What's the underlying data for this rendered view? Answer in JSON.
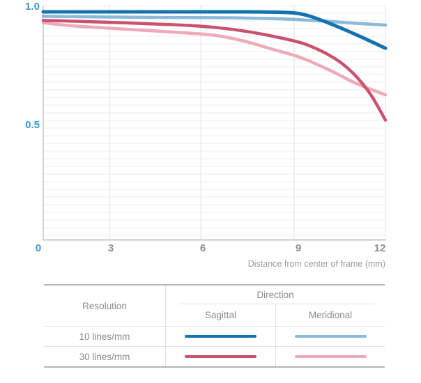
{
  "chart": {
    "y_tick_labels": [
      "1.0",
      "0.5"
    ],
    "x_tick_labels": [
      "0",
      "3",
      "6",
      "9",
      "12"
    ],
    "axis_title": "Distance from center of frame (mm)"
  },
  "chart_data": {
    "type": "line",
    "title": "",
    "xlabel": "Distance from center of frame (mm)",
    "ylabel": "",
    "xlim": [
      0,
      12
    ],
    "ylim": [
      0,
      1.0
    ],
    "xticks": [
      0,
      3,
      6,
      9,
      12
    ],
    "yticks": [
      1.0,
      0.5
    ],
    "grid": "fine horizontal lines plus vertical lines at x ticks",
    "legend_position": "table below chart",
    "series": [
      {
        "name": "10 lines/mm Sagittal",
        "color": "#1472b0",
        "stroke_width": 5,
        "x": [
          0,
          1,
          2,
          3,
          4,
          5,
          6,
          7,
          8,
          8.8,
          9.3,
          10,
          11,
          12
        ],
        "y": [
          0.982,
          0.982,
          0.982,
          0.982,
          0.982,
          0.982,
          0.982,
          0.982,
          0.981,
          0.977,
          0.965,
          0.934,
          0.882,
          0.825
        ]
      },
      {
        "name": "10 lines/mm Meridional",
        "color": "#8cb9da",
        "stroke_width": 4.5,
        "x": [
          0,
          2,
          4,
          6,
          8,
          9,
          10,
          11,
          12
        ],
        "y": [
          0.963,
          0.96,
          0.958,
          0.957,
          0.953,
          0.948,
          0.941,
          0.932,
          0.925
        ]
      },
      {
        "name": "30 lines/mm Sagittal",
        "color": "#c9536f",
        "stroke_width": 4.5,
        "x": [
          0,
          1,
          2,
          3,
          4,
          5,
          6,
          7,
          8,
          9,
          9.5,
          10,
          10.5,
          11,
          11.5,
          12
        ],
        "y": [
          0.945,
          0.942,
          0.938,
          0.934,
          0.929,
          0.924,
          0.915,
          0.9,
          0.878,
          0.85,
          0.827,
          0.797,
          0.757,
          0.7,
          0.622,
          0.515
        ]
      },
      {
        "name": "30 lines/mm Meridional",
        "color": "#ecaaba",
        "stroke_width": 4.5,
        "x": [
          0,
          0.5,
          1,
          2,
          3,
          4,
          5,
          6,
          7,
          8,
          9,
          10,
          11,
          12
        ],
        "y": [
          0.935,
          0.928,
          0.922,
          0.914,
          0.906,
          0.899,
          0.891,
          0.881,
          0.857,
          0.822,
          0.786,
          0.733,
          0.672,
          0.624
        ]
      }
    ]
  },
  "table": {
    "resolution_header": "Resolution",
    "direction_header": "Direction",
    "col_sagittal": "Sagittal",
    "col_meridional": "Meridional",
    "rows": [
      {
        "label": "10 lines/mm",
        "sagittal_color": "#1472b0",
        "meridional_color": "#8cb9da"
      },
      {
        "label": "30 lines/mm",
        "sagittal_color": "#c9536f",
        "meridional_color": "#ecaaba"
      }
    ]
  },
  "colors": {
    "tick_blue": "#3e95d2",
    "tick_gray": "#8d8d8d",
    "axis_line": "#c8c8c8",
    "grid_horizontal": "#ededed",
    "grid_vertical": "#e3e3e3",
    "table_border_strong": "#b5b5b5",
    "table_border_light": "#e2e2e2",
    "table_text": "#8a8a8a"
  }
}
